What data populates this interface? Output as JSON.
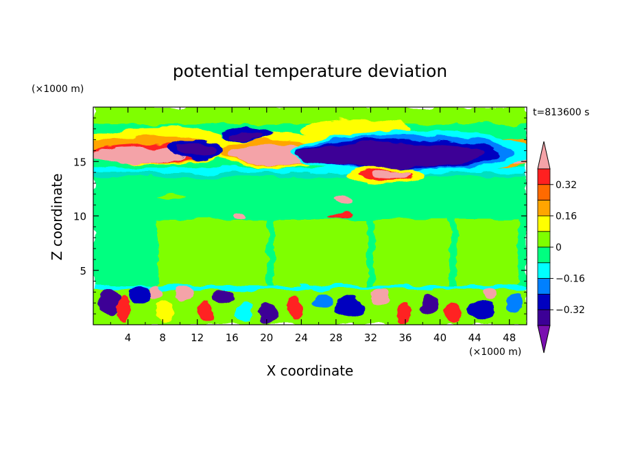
{
  "chart_data": {
    "type": "heatmap",
    "title": "potential temperature deviation",
    "xlabel": "X coordinate",
    "ylabel": "Z coordinate",
    "x_unit": "(×1000 m)",
    "y_unit": "(×1000 m)",
    "time_label": "t=813600 s",
    "xlim": [
      0,
      50
    ],
    "ylim": [
      0,
      20
    ],
    "x_ticks": [
      4,
      8,
      12,
      16,
      20,
      24,
      28,
      32,
      36,
      40,
      44,
      48
    ],
    "x_tick_labels": [
      "4",
      "8",
      "12",
      "16",
      "20",
      "24",
      "28",
      "32",
      "36",
      "40",
      "44",
      "48"
    ],
    "y_ticks": [
      5,
      10,
      15
    ],
    "y_tick_labels": [
      "5",
      "10",
      "15"
    ],
    "colorbar": {
      "levels": [
        -0.4,
        -0.32,
        -0.24,
        -0.16,
        -0.08,
        0,
        0.08,
        0.16,
        0.24,
        0.32,
        0.4
      ],
      "labeled_levels": [
        0.32,
        0.16,
        0,
        -0.16,
        -0.32
      ],
      "labels": [
        "0.32",
        "0.16",
        "0",
        "−0.16",
        "−0.32"
      ],
      "colors_top_to_bottom": [
        "#f4a3a8",
        "#ff2020",
        "#ff6a00",
        "#ffa500",
        "#ffff00",
        "#7fff00",
        "#00ff80",
        "#00ffff",
        "#0080ff",
        "#0000c0",
        "#3c0096",
        "#7a10b0"
      ],
      "extend": "both"
    },
    "grid": false,
    "legend_position": "right"
  }
}
